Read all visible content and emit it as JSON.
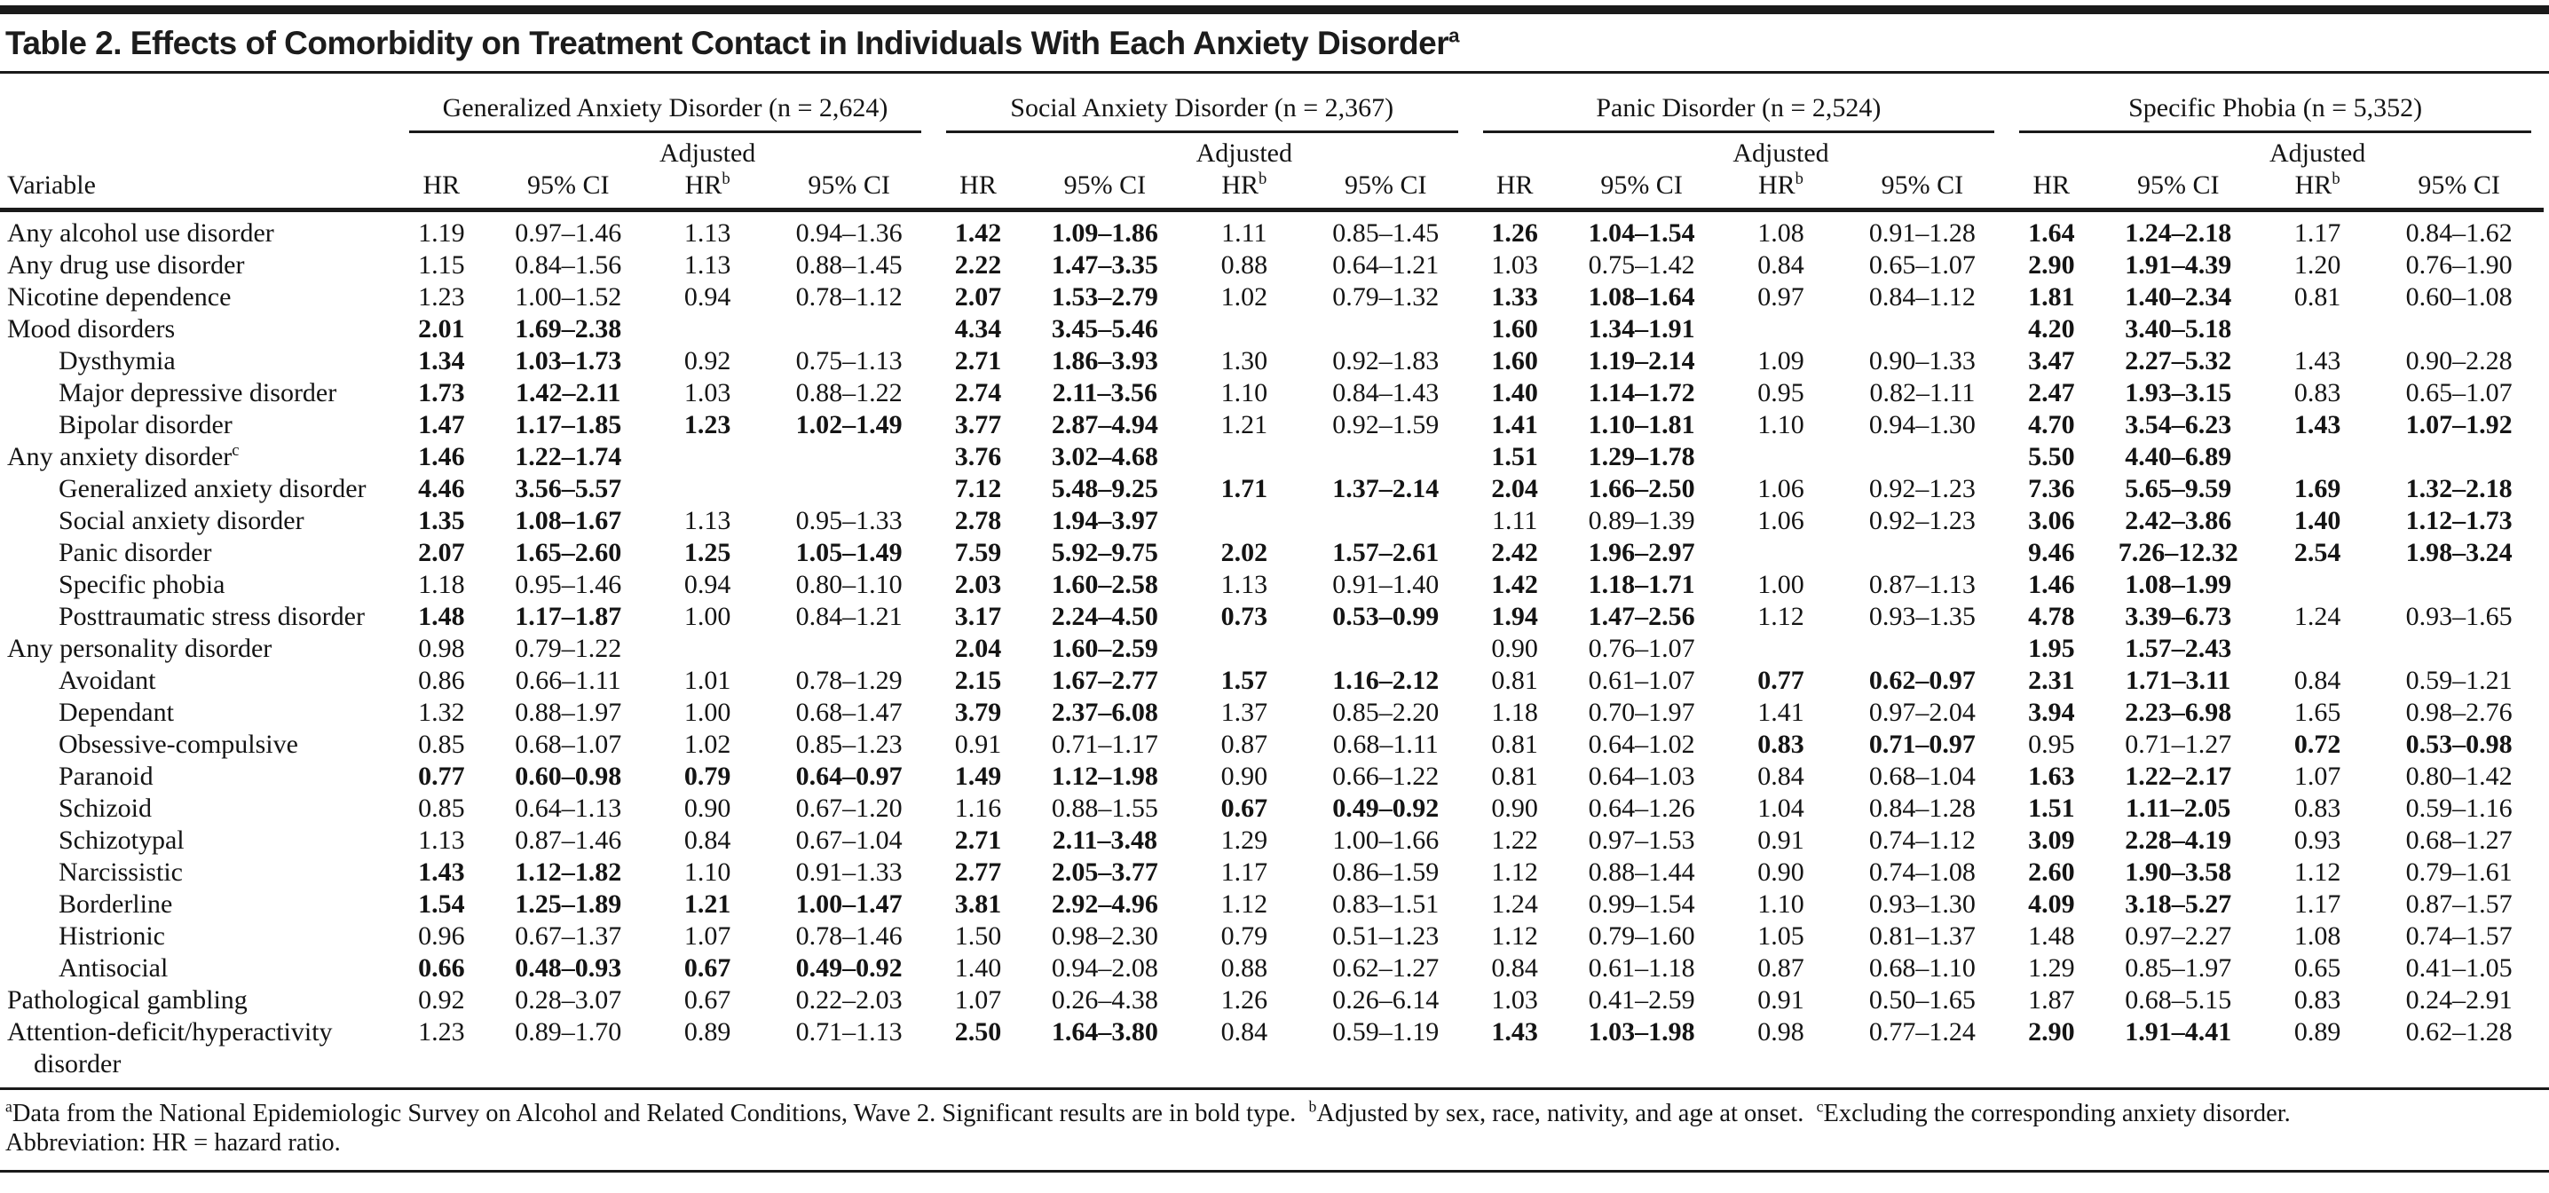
{
  "title": {
    "text": "Table 2. Effects of Comorbidity on Treatment Contact in Individuals With Each Anxiety Disorder",
    "sup": "a"
  },
  "header": {
    "variable_label": "Variable",
    "adjusted_label": "Adjusted",
    "hr_label": "HR",
    "ci_label": "95% CI",
    "adj_hr_label": "HR",
    "adj_hr_sup": "b",
    "groups": [
      {
        "name": "Generalized Anxiety Disorder (n = 2,624)"
      },
      {
        "name": "Social Anxiety Disorder (n = 2,367)"
      },
      {
        "name": "Panic Disorder (n = 2,524)"
      },
      {
        "name": "Specific Phobia (n = 5,352)"
      }
    ]
  },
  "rows": [
    {
      "label": "Any alcohol use disorder",
      "sup": "",
      "indent": 0,
      "cells": [
        "1.19",
        "0.97–1.46",
        "1.13",
        "0.94–1.36",
        "1.42",
        "1.09–1.86",
        "1.11",
        "0.85–1.45",
        "1.26",
        "1.04–1.54",
        "1.08",
        "0.91–1.28",
        "1.64",
        "1.24–2.18",
        "1.17",
        "0.84–1.62"
      ],
      "bold": [
        0,
        0,
        0,
        0,
        1,
        1,
        0,
        0,
        1,
        1,
        0,
        0,
        1,
        1,
        0,
        0
      ]
    },
    {
      "label": "Any drug use disorder",
      "sup": "",
      "indent": 0,
      "cells": [
        "1.15",
        "0.84–1.56",
        "1.13",
        "0.88–1.45",
        "2.22",
        "1.47–3.35",
        "0.88",
        "0.64–1.21",
        "1.03",
        "0.75–1.42",
        "0.84",
        "0.65–1.07",
        "2.90",
        "1.91–4.39",
        "1.20",
        "0.76–1.90"
      ],
      "bold": [
        0,
        0,
        0,
        0,
        1,
        1,
        0,
        0,
        0,
        0,
        0,
        0,
        1,
        1,
        0,
        0
      ]
    },
    {
      "label": "Nicotine dependence",
      "sup": "",
      "indent": 0,
      "cells": [
        "1.23",
        "1.00–1.52",
        "0.94",
        "0.78–1.12",
        "2.07",
        "1.53–2.79",
        "1.02",
        "0.79–1.32",
        "1.33",
        "1.08–1.64",
        "0.97",
        "0.84–1.12",
        "1.81",
        "1.40–2.34",
        "0.81",
        "0.60–1.08"
      ],
      "bold": [
        0,
        0,
        0,
        0,
        1,
        1,
        0,
        0,
        1,
        1,
        0,
        0,
        1,
        1,
        0,
        0
      ]
    },
    {
      "label": "Mood disorders",
      "sup": "",
      "indent": 0,
      "cells": [
        "2.01",
        "1.69–2.38",
        "",
        "",
        "4.34",
        "3.45–5.46",
        "",
        "",
        "1.60",
        "1.34–1.91",
        "",
        "",
        "4.20",
        "3.40–5.18",
        "",
        ""
      ],
      "bold": [
        1,
        1,
        0,
        0,
        1,
        1,
        0,
        0,
        1,
        1,
        0,
        0,
        1,
        1,
        0,
        0
      ]
    },
    {
      "label": "Dysthymia",
      "sup": "",
      "indent": 1,
      "cells": [
        "1.34",
        "1.03–1.73",
        "0.92",
        "0.75–1.13",
        "2.71",
        "1.86–3.93",
        "1.30",
        "0.92–1.83",
        "1.60",
        "1.19–2.14",
        "1.09",
        "0.90–1.33",
        "3.47",
        "2.27–5.32",
        "1.43",
        "0.90–2.28"
      ],
      "bold": [
        1,
        1,
        0,
        0,
        1,
        1,
        0,
        0,
        1,
        1,
        0,
        0,
        1,
        1,
        0,
        0
      ]
    },
    {
      "label": "Major depressive disorder",
      "sup": "",
      "indent": 1,
      "cells": [
        "1.73",
        "1.42–2.11",
        "1.03",
        "0.88–1.22",
        "2.74",
        "2.11–3.56",
        "1.10",
        "0.84–1.43",
        "1.40",
        "1.14–1.72",
        "0.95",
        "0.82–1.11",
        "2.47",
        "1.93–3.15",
        "0.83",
        "0.65–1.07"
      ],
      "bold": [
        1,
        1,
        0,
        0,
        1,
        1,
        0,
        0,
        1,
        1,
        0,
        0,
        1,
        1,
        0,
        0
      ]
    },
    {
      "label": "Bipolar disorder",
      "sup": "",
      "indent": 1,
      "cells": [
        "1.47",
        "1.17–1.85",
        "1.23",
        "1.02–1.49",
        "3.77",
        "2.87–4.94",
        "1.21",
        "0.92–1.59",
        "1.41",
        "1.10–1.81",
        "1.10",
        "0.94–1.30",
        "4.70",
        "3.54–6.23",
        "1.43",
        "1.07–1.92"
      ],
      "bold": [
        1,
        1,
        1,
        1,
        1,
        1,
        0,
        0,
        1,
        1,
        0,
        0,
        1,
        1,
        1,
        1
      ]
    },
    {
      "label": "Any anxiety disorder",
      "sup": "c",
      "indent": 0,
      "cells": [
        "1.46",
        "1.22–1.74",
        "",
        "",
        "3.76",
        "3.02–4.68",
        "",
        "",
        "1.51",
        "1.29–1.78",
        "",
        "",
        "5.50",
        "4.40–6.89",
        "",
        ""
      ],
      "bold": [
        1,
        1,
        0,
        0,
        1,
        1,
        0,
        0,
        1,
        1,
        0,
        0,
        1,
        1,
        0,
        0
      ]
    },
    {
      "label": "Generalized anxiety disorder",
      "sup": "",
      "indent": 1,
      "cells": [
        "4.46",
        "3.56–5.57",
        "",
        "",
        "7.12",
        "5.48–9.25",
        "1.71",
        "1.37–2.14",
        "2.04",
        "1.66–2.50",
        "1.06",
        "0.92–1.23",
        "7.36",
        "5.65–9.59",
        "1.69",
        "1.32–2.18"
      ],
      "bold": [
        1,
        1,
        0,
        0,
        1,
        1,
        1,
        1,
        1,
        1,
        0,
        0,
        1,
        1,
        1,
        1
      ]
    },
    {
      "label": "Social anxiety disorder",
      "sup": "",
      "indent": 1,
      "cells": [
        "1.35",
        "1.08–1.67",
        "1.13",
        "0.95–1.33",
        "2.78",
        "1.94–3.97",
        "",
        "",
        "1.11",
        "0.89–1.39",
        "1.06",
        "0.92–1.23",
        "3.06",
        "2.42–3.86",
        "1.40",
        "1.12–1.73"
      ],
      "bold": [
        1,
        1,
        0,
        0,
        1,
        1,
        0,
        0,
        0,
        0,
        0,
        0,
        1,
        1,
        1,
        1
      ]
    },
    {
      "label": "Panic disorder",
      "sup": "",
      "indent": 1,
      "cells": [
        "2.07",
        "1.65–2.60",
        "1.25",
        "1.05–1.49",
        "7.59",
        "5.92–9.75",
        "2.02",
        "1.57–2.61",
        "2.42",
        "1.96–2.97",
        "",
        "",
        "9.46",
        "7.26–12.32",
        "2.54",
        "1.98–3.24"
      ],
      "bold": [
        1,
        1,
        1,
        1,
        1,
        1,
        1,
        1,
        1,
        1,
        0,
        0,
        1,
        1,
        1,
        1
      ]
    },
    {
      "label": "Specific phobia",
      "sup": "",
      "indent": 1,
      "cells": [
        "1.18",
        "0.95–1.46",
        "0.94",
        "0.80–1.10",
        "2.03",
        "1.60–2.58",
        "1.13",
        "0.91–1.40",
        "1.42",
        "1.18–1.71",
        "1.00",
        "0.87–1.13",
        "1.46",
        "1.08–1.99",
        "",
        ""
      ],
      "bold": [
        0,
        0,
        0,
        0,
        1,
        1,
        0,
        0,
        1,
        1,
        0,
        0,
        1,
        1,
        0,
        0
      ]
    },
    {
      "label": "Posttraumatic stress disorder",
      "sup": "",
      "indent": 1,
      "cells": [
        "1.48",
        "1.17–1.87",
        "1.00",
        "0.84–1.21",
        "3.17",
        "2.24–4.50",
        "0.73",
        "0.53–0.99",
        "1.94",
        "1.47–2.56",
        "1.12",
        "0.93–1.35",
        "4.78",
        "3.39–6.73",
        "1.24",
        "0.93–1.65"
      ],
      "bold": [
        1,
        1,
        0,
        0,
        1,
        1,
        1,
        1,
        1,
        1,
        0,
        0,
        1,
        1,
        0,
        0
      ]
    },
    {
      "label": "Any personality disorder",
      "sup": "",
      "indent": 0,
      "cells": [
        "0.98",
        "0.79–1.22",
        "",
        "",
        "2.04",
        "1.60–2.59",
        "",
        "",
        "0.90",
        "0.76–1.07",
        "",
        "",
        "1.95",
        "1.57–2.43",
        "",
        ""
      ],
      "bold": [
        0,
        0,
        0,
        0,
        1,
        1,
        0,
        0,
        0,
        0,
        0,
        0,
        1,
        1,
        0,
        0
      ]
    },
    {
      "label": "Avoidant",
      "sup": "",
      "indent": 1,
      "cells": [
        "0.86",
        "0.66–1.11",
        "1.01",
        "0.78–1.29",
        "2.15",
        "1.67–2.77",
        "1.57",
        "1.16–2.12",
        "0.81",
        "0.61–1.07",
        "0.77",
        "0.62–0.97",
        "2.31",
        "1.71–3.11",
        "0.84",
        "0.59–1.21"
      ],
      "bold": [
        0,
        0,
        0,
        0,
        1,
        1,
        1,
        1,
        0,
        0,
        1,
        1,
        1,
        1,
        0,
        0
      ]
    },
    {
      "label": "Dependant",
      "sup": "",
      "indent": 1,
      "cells": [
        "1.32",
        "0.88–1.97",
        "1.00",
        "0.68–1.47",
        "3.79",
        "2.37–6.08",
        "1.37",
        "0.85–2.20",
        "1.18",
        "0.70–1.97",
        "1.41",
        "0.97–2.04",
        "3.94",
        "2.23–6.98",
        "1.65",
        "0.98–2.76"
      ],
      "bold": [
        0,
        0,
        0,
        0,
        1,
        1,
        0,
        0,
        0,
        0,
        0,
        0,
        1,
        1,
        0,
        0
      ]
    },
    {
      "label": "Obsessive-compulsive",
      "sup": "",
      "indent": 1,
      "cells": [
        "0.85",
        "0.68–1.07",
        "1.02",
        "0.85–1.23",
        "0.91",
        "0.71–1.17",
        "0.87",
        "0.68–1.11",
        "0.81",
        "0.64–1.02",
        "0.83",
        "0.71–0.97",
        "0.95",
        "0.71–1.27",
        "0.72",
        "0.53–0.98"
      ],
      "bold": [
        0,
        0,
        0,
        0,
        0,
        0,
        0,
        0,
        0,
        0,
        1,
        1,
        0,
        0,
        1,
        1
      ]
    },
    {
      "label": "Paranoid",
      "sup": "",
      "indent": 1,
      "cells": [
        "0.77",
        "0.60–0.98",
        "0.79",
        "0.64–0.97",
        "1.49",
        "1.12–1.98",
        "0.90",
        "0.66–1.22",
        "0.81",
        "0.64–1.03",
        "0.84",
        "0.68–1.04",
        "1.63",
        "1.22–2.17",
        "1.07",
        "0.80–1.42"
      ],
      "bold": [
        1,
        1,
        1,
        1,
        1,
        1,
        0,
        0,
        0,
        0,
        0,
        0,
        1,
        1,
        0,
        0
      ]
    },
    {
      "label": "Schizoid",
      "sup": "",
      "indent": 1,
      "cells": [
        "0.85",
        "0.64–1.13",
        "0.90",
        "0.67–1.20",
        "1.16",
        "0.88–1.55",
        "0.67",
        "0.49–0.92",
        "0.90",
        "0.64–1.26",
        "1.04",
        "0.84–1.28",
        "1.51",
        "1.11–2.05",
        "0.83",
        "0.59–1.16"
      ],
      "bold": [
        0,
        0,
        0,
        0,
        0,
        0,
        1,
        1,
        0,
        0,
        0,
        0,
        1,
        1,
        0,
        0
      ]
    },
    {
      "label": "Schizotypal",
      "sup": "",
      "indent": 1,
      "cells": [
        "1.13",
        "0.87–1.46",
        "0.84",
        "0.67–1.04",
        "2.71",
        "2.11–3.48",
        "1.29",
        "1.00–1.66",
        "1.22",
        "0.97–1.53",
        "0.91",
        "0.74–1.12",
        "3.09",
        "2.28–4.19",
        "0.93",
        "0.68–1.27"
      ],
      "bold": [
        0,
        0,
        0,
        0,
        1,
        1,
        0,
        0,
        0,
        0,
        0,
        0,
        1,
        1,
        0,
        0
      ]
    },
    {
      "label": "Narcissistic",
      "sup": "",
      "indent": 1,
      "cells": [
        "1.43",
        "1.12–1.82",
        "1.10",
        "0.91–1.33",
        "2.77",
        "2.05–3.77",
        "1.17",
        "0.86–1.59",
        "1.12",
        "0.88–1.44",
        "0.90",
        "0.74–1.08",
        "2.60",
        "1.90–3.58",
        "1.12",
        "0.79–1.61"
      ],
      "bold": [
        1,
        1,
        0,
        0,
        1,
        1,
        0,
        0,
        0,
        0,
        0,
        0,
        1,
        1,
        0,
        0
      ]
    },
    {
      "label": "Borderline",
      "sup": "",
      "indent": 1,
      "cells": [
        "1.54",
        "1.25–1.89",
        "1.21",
        "1.00–1.47",
        "3.81",
        "2.92–4.96",
        "1.12",
        "0.83–1.51",
        "1.24",
        "0.99–1.54",
        "1.10",
        "0.93–1.30",
        "4.09",
        "3.18–5.27",
        "1.17",
        "0.87–1.57"
      ],
      "bold": [
        1,
        1,
        1,
        1,
        1,
        1,
        0,
        0,
        0,
        0,
        0,
        0,
        1,
        1,
        0,
        0
      ]
    },
    {
      "label": "Histrionic",
      "sup": "",
      "indent": 1,
      "cells": [
        "0.96",
        "0.67–1.37",
        "1.07",
        "0.78–1.46",
        "1.50",
        "0.98–2.30",
        "0.79",
        "0.51–1.23",
        "1.12",
        "0.79–1.60",
        "1.05",
        "0.81–1.37",
        "1.48",
        "0.97–2.27",
        "1.08",
        "0.74–1.57"
      ],
      "bold": [
        0,
        0,
        0,
        0,
        0,
        0,
        0,
        0,
        0,
        0,
        0,
        0,
        0,
        0,
        0,
        0
      ]
    },
    {
      "label": "Antisocial",
      "sup": "",
      "indent": 1,
      "cells": [
        "0.66",
        "0.48–0.93",
        "0.67",
        "0.49–0.92",
        "1.40",
        "0.94–2.08",
        "0.88",
        "0.62–1.27",
        "0.84",
        "0.61–1.18",
        "0.87",
        "0.68–1.10",
        "1.29",
        "0.85–1.97",
        "0.65",
        "0.41–1.05"
      ],
      "bold": [
        1,
        1,
        1,
        1,
        0,
        0,
        0,
        0,
        0,
        0,
        0,
        0,
        0,
        0,
        0,
        0
      ]
    },
    {
      "label": "Pathological gambling",
      "sup": "",
      "indent": 0,
      "cells": [
        "0.92",
        "0.28–3.07",
        "0.67",
        "0.22–2.03",
        "1.07",
        "0.26–4.38",
        "1.26",
        "0.26–6.14",
        "1.03",
        "0.41–2.59",
        "0.91",
        "0.50–1.65",
        "1.87",
        "0.68–5.15",
        "0.83",
        "0.24–2.91"
      ],
      "bold": [
        0,
        0,
        0,
        0,
        0,
        0,
        0,
        0,
        0,
        0,
        0,
        0,
        0,
        0,
        0,
        0
      ]
    },
    {
      "label": "Attention-deficit/hyperactivity disorder",
      "sup": "",
      "indent": 0,
      "cells": [
        "1.23",
        "0.89–1.70",
        "0.89",
        "0.71–1.13",
        "2.50",
        "1.64–3.80",
        "0.84",
        "0.59–1.19",
        "1.43",
        "1.03–1.98",
        "0.98",
        "0.77–1.24",
        "2.90",
        "1.91–4.41",
        "0.89",
        "0.62–1.28"
      ],
      "bold": [
        0,
        0,
        0,
        0,
        1,
        1,
        0,
        0,
        1,
        1,
        0,
        0,
        1,
        1,
        0,
        0
      ]
    }
  ],
  "footnotes": {
    "line1": [
      {
        "sup": "a",
        "text": "Data from the National Epidemiologic Survey on Alcohol and Related Conditions, Wave 2. Significant results are in bold type. "
      },
      {
        "sup": "b",
        "text": "Adjusted by sex, race, nativity, and age at onset. "
      },
      {
        "sup": "c",
        "text": "Excluding the corresponding anxiety disorder."
      }
    ],
    "line2": "Abbreviation: HR = hazard ratio."
  }
}
